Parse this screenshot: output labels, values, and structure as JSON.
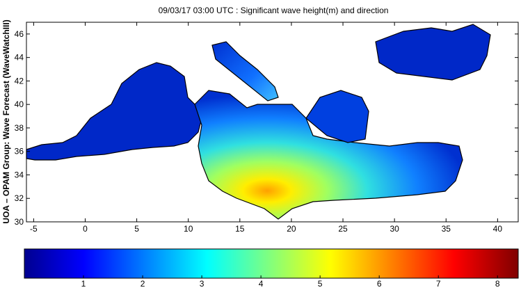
{
  "chart_data": {
    "type": "map",
    "title": "09/03/17 03:00 UTC : Significant wave height(m) and direction",
    "ylabel": "UOA – OPAM Group: Wave Forecast  (WaveWatchIII)",
    "xlim": [
      -5.7,
      42
    ],
    "ylim": [
      30,
      47
    ],
    "xticks": [
      -5,
      0,
      5,
      10,
      15,
      20,
      25,
      30,
      35,
      40
    ],
    "yticks": [
      30,
      32,
      34,
      36,
      38,
      40,
      42,
      44,
      46
    ],
    "colorbar": {
      "clim": [
        0,
        8.35
      ],
      "ticks": [
        1,
        2,
        3,
        4,
        5,
        6,
        7,
        8
      ]
    }
  }
}
